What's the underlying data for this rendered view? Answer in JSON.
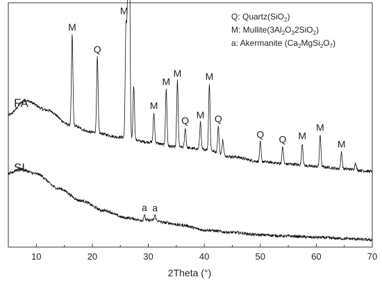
{
  "chart_data": {
    "type": "line",
    "xlabel": "2Theta (°)",
    "ylabel": "",
    "xlim": [
      5,
      70
    ],
    "xticks": [
      10,
      20,
      30,
      40,
      50,
      60,
      70
    ],
    "yticks": "none",
    "grid": false,
    "legend": {
      "placement": "top-right",
      "entries": [
        {
          "key": "Q",
          "text": "Q: Quartz(SiO",
          "sub": "2",
          "tail": ")"
        },
        {
          "key": "M",
          "text": "M: Mullite(3Al",
          "parts": [
            "2",
            "O",
            "3",
            "2SiO",
            "2",
            ")"
          ]
        },
        {
          "key": "a",
          "text": "a: Akermanite (Ca",
          "parts": [
            "2",
            "MgSi",
            "2",
            "O",
            "7",
            ")"
          ]
        }
      ]
    },
    "series": [
      {
        "name": "FA",
        "baseline": [
          [
            5,
            0.54
          ],
          [
            8,
            0.6
          ],
          [
            12,
            0.56
          ],
          [
            16,
            0.5
          ],
          [
            20,
            0.47
          ],
          [
            25,
            0.45
          ],
          [
            30,
            0.43
          ],
          [
            35,
            0.41
          ],
          [
            40,
            0.4
          ],
          [
            45,
            0.37
          ],
          [
            50,
            0.35
          ],
          [
            55,
            0.34
          ],
          [
            60,
            0.33
          ],
          [
            65,
            0.32
          ],
          [
            70,
            0.31
          ]
        ],
        "peaks": [
          {
            "x": 16.4,
            "h": 0.37,
            "label": "M"
          },
          {
            "x": 20.9,
            "h": 0.31,
            "label": "Q"
          },
          {
            "x": 26.0,
            "h": 0.43,
            "label": ""
          },
          {
            "x": 26.3,
            "h": 0.49,
            "label": "M"
          },
          {
            "x": 26.6,
            "h": 0.91,
            "label": "Q"
          },
          {
            "x": 27.4,
            "h": 0.22,
            "label": ""
          },
          {
            "x": 31.0,
            "h": 0.12,
            "label": "M"
          },
          {
            "x": 33.2,
            "h": 0.23,
            "label": "M"
          },
          {
            "x": 35.2,
            "h": 0.27,
            "label": "M"
          },
          {
            "x": 36.6,
            "h": 0.08,
            "label": "Q"
          },
          {
            "x": 39.3,
            "h": 0.11,
            "label": "M"
          },
          {
            "x": 40.9,
            "h": 0.27,
            "label": "M"
          },
          {
            "x": 42.5,
            "h": 0.11,
            "label": "Q"
          },
          {
            "x": 43.3,
            "h": 0.06,
            "label": ""
          },
          {
            "x": 50.0,
            "h": 0.08,
            "label": "Q"
          },
          {
            "x": 54.0,
            "h": 0.07,
            "label": "Q"
          },
          {
            "x": 57.5,
            "h": 0.09,
            "label": "M"
          },
          {
            "x": 60.7,
            "h": 0.13,
            "label": "M"
          },
          {
            "x": 64.5,
            "h": 0.07,
            "label": "M"
          },
          {
            "x": 67.0,
            "h": 0.03,
            "label": ""
          }
        ]
      },
      {
        "name": "SL",
        "baseline": [
          [
            5,
            0.3
          ],
          [
            7,
            0.32
          ],
          [
            10,
            0.3
          ],
          [
            14,
            0.24
          ],
          [
            18,
            0.19
          ],
          [
            22,
            0.15
          ],
          [
            26,
            0.12
          ],
          [
            29,
            0.11
          ],
          [
            31,
            0.11
          ],
          [
            33,
            0.1
          ],
          [
            36,
            0.09
          ],
          [
            40,
            0.07
          ],
          [
            45,
            0.06
          ],
          [
            50,
            0.05
          ],
          [
            55,
            0.045
          ],
          [
            60,
            0.04
          ],
          [
            65,
            0.035
          ],
          [
            70,
            0.03
          ]
        ],
        "peaks": [
          {
            "x": 29.3,
            "h": 0.02,
            "label": "a"
          },
          {
            "x": 31.2,
            "h": 0.02,
            "label": "a"
          }
        ]
      }
    ]
  }
}
